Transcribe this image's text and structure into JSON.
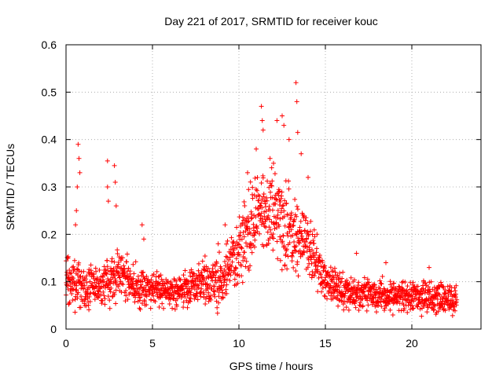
{
  "chart_data": {
    "type": "scatter",
    "title": "Day 221 of 2017, SRMTID for receiver kouc",
    "xlabel": "GPS time / hours",
    "ylabel": "SRMTID / TECUs",
    "xlim": [
      0,
      24
    ],
    "ylim": [
      0,
      0.6
    ],
    "x_ticks": [
      0,
      5,
      10,
      15,
      20
    ],
    "x_tick_labels": [
      "0",
      "5",
      "10",
      "15",
      "20"
    ],
    "y_ticks": [
      0,
      0.1,
      0.2,
      0.3,
      0.4,
      0.5,
      0.6
    ],
    "y_tick_labels": [
      "0",
      "0.1",
      "0.2",
      "0.3",
      "0.4",
      "0.5",
      "0.6"
    ],
    "grid": true,
    "marker": "+",
    "series": [
      {
        "name": "SRMTID",
        "color": "#ff0000",
        "envelope": {
          "description": "Dense '+' markers sampled every ~0.01 h; values estimated from the plotted envelope (center / spread in TECU)",
          "x_range": [
            0.0,
            22.6
          ],
          "profile": [
            {
              "x": 0.0,
              "center": 0.11,
              "spread": 0.05
            },
            {
              "x": 0.5,
              "center": 0.1,
              "spread": 0.05
            },
            {
              "x": 1.0,
              "center": 0.09,
              "spread": 0.04
            },
            {
              "x": 2.0,
              "center": 0.09,
              "spread": 0.04
            },
            {
              "x": 3.0,
              "center": 0.12,
              "spread": 0.05
            },
            {
              "x": 4.0,
              "center": 0.09,
              "spread": 0.04
            },
            {
              "x": 5.0,
              "center": 0.08,
              "spread": 0.03
            },
            {
              "x": 6.5,
              "center": 0.08,
              "spread": 0.03
            },
            {
              "x": 8.0,
              "center": 0.1,
              "spread": 0.04
            },
            {
              "x": 9.0,
              "center": 0.1,
              "spread": 0.05
            },
            {
              "x": 10.0,
              "center": 0.18,
              "spread": 0.07
            },
            {
              "x": 11.0,
              "center": 0.25,
              "spread": 0.08
            },
            {
              "x": 12.0,
              "center": 0.25,
              "spread": 0.09
            },
            {
              "x": 13.0,
              "center": 0.2,
              "spread": 0.08
            },
            {
              "x": 14.0,
              "center": 0.18,
              "spread": 0.06
            },
            {
              "x": 15.0,
              "center": 0.1,
              "spread": 0.04
            },
            {
              "x": 16.0,
              "center": 0.08,
              "spread": 0.03
            },
            {
              "x": 18.0,
              "center": 0.07,
              "spread": 0.03
            },
            {
              "x": 20.0,
              "center": 0.07,
              "spread": 0.03
            },
            {
              "x": 22.6,
              "center": 0.06,
              "spread": 0.03
            }
          ]
        },
        "highlights": [
          {
            "x": 0.7,
            "y": 0.39
          },
          {
            "x": 0.75,
            "y": 0.36
          },
          {
            "x": 0.8,
            "y": 0.33
          },
          {
            "x": 0.65,
            "y": 0.3
          },
          {
            "x": 0.6,
            "y": 0.25
          },
          {
            "x": 0.55,
            "y": 0.22
          },
          {
            "x": 2.4,
            "y": 0.355
          },
          {
            "x": 2.4,
            "y": 0.3
          },
          {
            "x": 2.45,
            "y": 0.27
          },
          {
            "x": 2.8,
            "y": 0.345
          },
          {
            "x": 2.85,
            "y": 0.31
          },
          {
            "x": 2.9,
            "y": 0.26
          },
          {
            "x": 4.4,
            "y": 0.22
          },
          {
            "x": 4.5,
            "y": 0.19
          },
          {
            "x": 11.3,
            "y": 0.47
          },
          {
            "x": 11.35,
            "y": 0.44
          },
          {
            "x": 11.4,
            "y": 0.42
          },
          {
            "x": 12.2,
            "y": 0.44
          },
          {
            "x": 12.5,
            "y": 0.45
          },
          {
            "x": 12.6,
            "y": 0.43
          },
          {
            "x": 12.9,
            "y": 0.4
          },
          {
            "x": 13.3,
            "y": 0.52
          },
          {
            "x": 13.35,
            "y": 0.48
          },
          {
            "x": 13.4,
            "y": 0.415
          },
          {
            "x": 11.0,
            "y": 0.38
          },
          {
            "x": 11.8,
            "y": 0.36
          },
          {
            "x": 12.0,
            "y": 0.35
          },
          {
            "x": 13.6,
            "y": 0.37
          },
          {
            "x": 14.0,
            "y": 0.32
          },
          {
            "x": 9.2,
            "y": 0.22
          },
          {
            "x": 8.8,
            "y": 0.18
          },
          {
            "x": 10.5,
            "y": 0.33
          },
          {
            "x": 16.8,
            "y": 0.16
          },
          {
            "x": 18.5,
            "y": 0.14
          },
          {
            "x": 21.0,
            "y": 0.13
          }
        ]
      }
    ]
  }
}
